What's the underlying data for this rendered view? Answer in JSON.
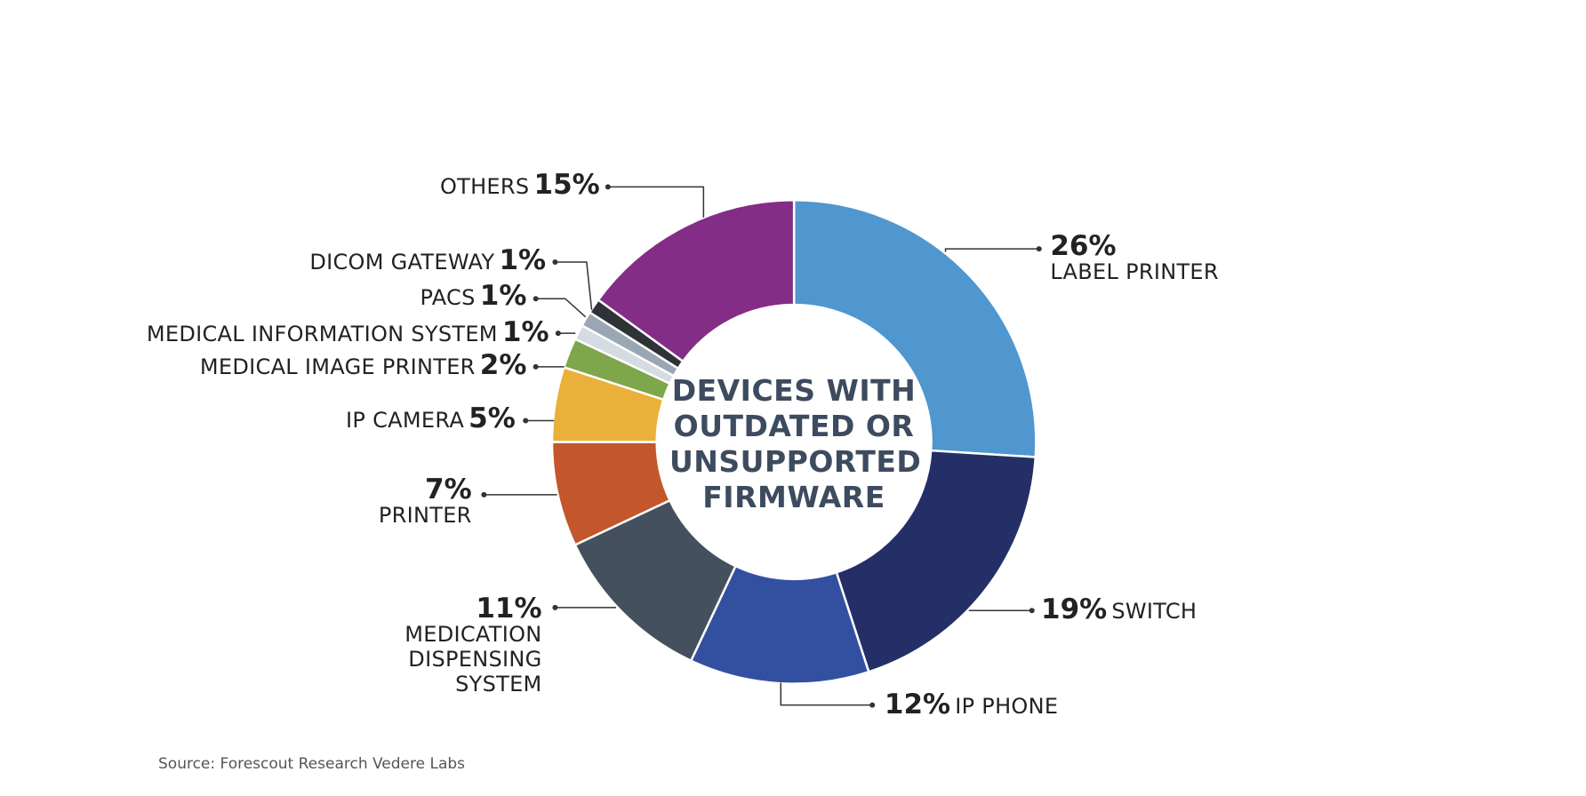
{
  "chart_data": {
    "type": "donut",
    "center_label": "DEVICES WITH OUTDATED OR UNSUPPORTED FIRMWARE",
    "source": "Source: Forescout Research Vedere Labs",
    "categories": [
      "LABEL PRINTER",
      "SWITCH",
      "IP PHONE",
      "MEDICATION DISPENSING SYSTEM",
      "PRINTER",
      "IP CAMERA",
      "MEDICAL IMAGE PRINTER",
      "MEDICAL INFORMATION SYSTEM",
      "PACS",
      "DICOM GATEWAY",
      "OTHERS"
    ],
    "values": [
      26,
      19,
      12,
      11,
      7,
      5,
      2,
      1,
      1,
      1,
      15
    ],
    "value_labels": [
      "26%",
      "19%",
      "12%",
      "11%",
      "7%",
      "5%",
      "2%",
      "1%",
      "1%",
      "1%",
      "15%"
    ],
    "colors": [
      "#5096cf",
      "#232f66",
      "#3350a0",
      "#45505e",
      "#c3562a",
      "#e9b13a",
      "#7ea64a",
      "#d5dbe3",
      "#9aa6b4",
      "#2f3237",
      "#832d86"
    ]
  }
}
